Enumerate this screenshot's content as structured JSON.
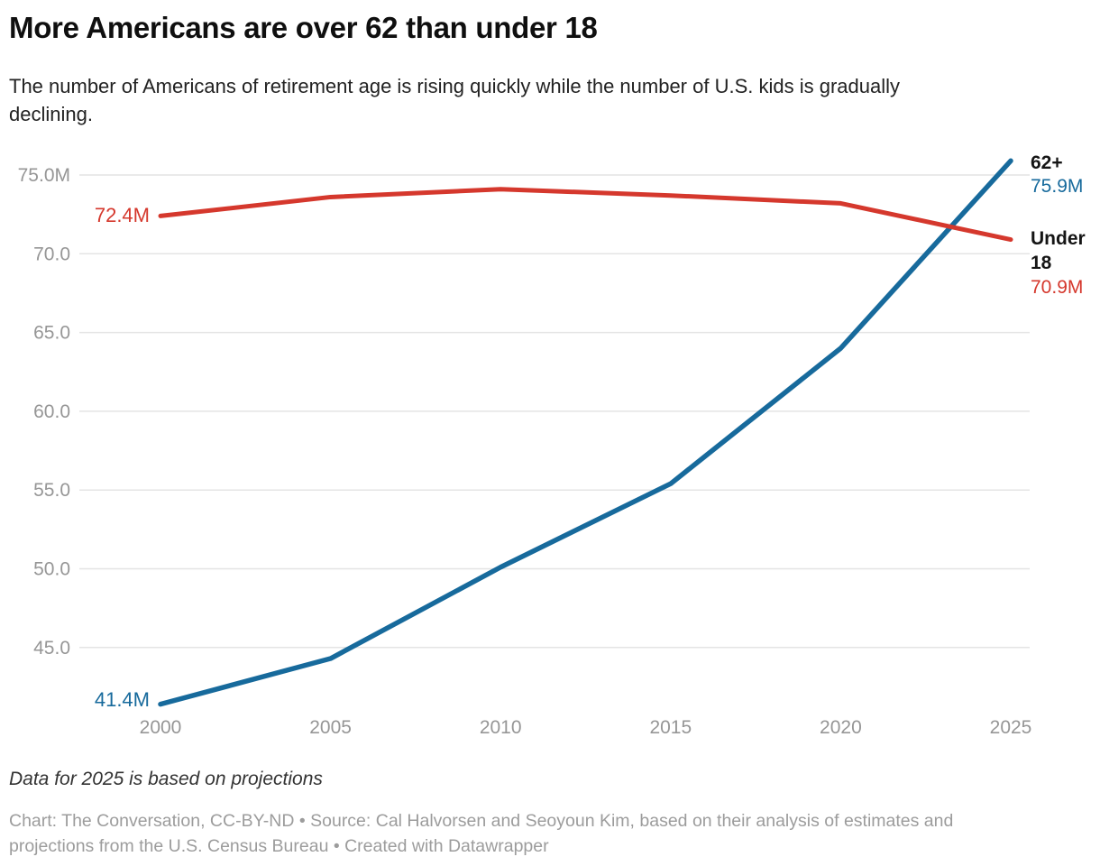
{
  "header": {
    "title": "More Americans are over 62 than under 18",
    "subtitle": "The number of Americans of retirement age is rising quickly while the number of U.S. kids is gradually declining."
  },
  "chart_data": {
    "type": "line",
    "x": [
      2000,
      2005,
      2010,
      2015,
      2020,
      2025
    ],
    "x_tick_labels": [
      "2000",
      "2005",
      "2010",
      "2015",
      "2020",
      "2025"
    ],
    "series": [
      {
        "name": "62+",
        "color": "#176a9c",
        "values": [
          41.4,
          44.3,
          50.1,
          55.4,
          64.0,
          75.9
        ],
        "start_label": "41.4M",
        "end_label": "75.9M"
      },
      {
        "name": "Under 18",
        "color": "#d5382d",
        "values": [
          72.4,
          73.6,
          74.1,
          73.7,
          73.2,
          70.9
        ],
        "start_label": "72.4M",
        "end_label": "70.9M"
      }
    ],
    "y_ticks": [
      {
        "value": 75,
        "label": "75.0M"
      },
      {
        "value": 70,
        "label": "70.0"
      },
      {
        "value": 65,
        "label": "65.0"
      },
      {
        "value": 60,
        "label": "60.0"
      },
      {
        "value": 55,
        "label": "55.0"
      },
      {
        "value": 50,
        "label": "50.0"
      },
      {
        "value": 45,
        "label": "45.0"
      }
    ],
    "ylim": [
      41,
      76.5
    ],
    "xlabel": "",
    "ylabel": "",
    "grid": "horizontal-only",
    "legend_position": "direct-labels-at-line-ends"
  },
  "colors": {
    "blue": "#176a9c",
    "red": "#d5382d",
    "grid": "#e4e4e4",
    "tick_text": "#969696",
    "name_text": "#151515"
  },
  "annotations": {
    "start_label_under18": "72.4M",
    "start_label_62plus": "41.4M",
    "end_name_62plus": "62+",
    "end_value_62plus": "75.9M",
    "end_name_under18": "Under 18",
    "end_value_under18": "70.9M"
  },
  "footer": {
    "note": "Data for 2025 is based on projections",
    "byline": "Chart: The Conversation, CC-BY-ND • Source: Cal Halvorsen and Seoyoun Kim, based on their analysis of estimates and projections from the U.S. Census Bureau • Created with Datawrapper"
  }
}
